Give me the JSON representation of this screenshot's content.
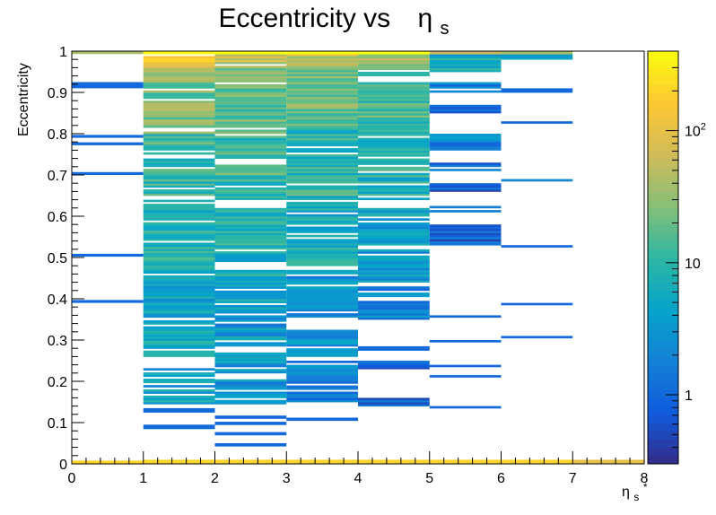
{
  "chart_data": {
    "type": "heatmap",
    "title": "Eccentricity vs",
    "title_symbol": "η",
    "title_symbol_sub": "s",
    "xlabel": "η",
    "xlabel_sub": "s",
    "xlabel_sup": "*",
    "ylabel": "Eccentricity",
    "xlim": [
      0,
      8
    ],
    "ylim": [
      0,
      1
    ],
    "x_ticks": [
      "0",
      "1",
      "2",
      "3",
      "4",
      "5",
      "6",
      "7",
      "8"
    ],
    "y_ticks": [
      "0",
      "0.1",
      "0.2",
      "0.3",
      "0.4",
      "0.5",
      "0.6",
      "0.7",
      "0.8",
      "0.9",
      "1"
    ],
    "z_scale": "log",
    "z_range": [
      0.3,
      400
    ],
    "colorbar_ticks": [
      {
        "value": 1,
        "label": "1"
      },
      {
        "value": 10,
        "label": "10"
      },
      {
        "value": 100,
        "label": "10",
        "sup": "2"
      }
    ],
    "palette": [
      "#352a87",
      "#0f5cdd",
      "#1481d6",
      "#06a4ca",
      "#2eb7a4",
      "#87bf77",
      "#d1bb59",
      "#fec832",
      "#f9fb0e"
    ],
    "x_bins": [
      {
        "x0": 0,
        "x1": 1,
        "cells": [
          {
            "y0": 0.0,
            "y1": 0.008,
            "z": 200
          },
          {
            "y0": 0.993,
            "y1": 1.0,
            "z": 40
          },
          {
            "y0": 0.91,
            "y1": 0.925,
            "z": 1
          },
          {
            "y0": 0.79,
            "y1": 0.797,
            "z": 1
          },
          {
            "y0": 0.772,
            "y1": 0.779,
            "z": 1
          },
          {
            "y0": 0.7,
            "y1": 0.707,
            "z": 1
          },
          {
            "y0": 0.502,
            "y1": 0.509,
            "z": 1
          },
          {
            "y0": 0.39,
            "y1": 0.397,
            "z": 1
          }
        ]
      },
      {
        "x0": 1,
        "x1": 2,
        "bands": [
          {
            "y0": 0.0,
            "y1": 0.01,
            "z": 200
          },
          {
            "y0": 0.085,
            "y1": 0.095,
            "z": 1
          },
          {
            "y0": 0.125,
            "y1": 0.135,
            "z": 1
          },
          {
            "y0": 0.145,
            "y1": 0.232,
            "z": 4
          },
          {
            "y0": 0.255,
            "y1": 0.348,
            "z": 6
          },
          {
            "y0": 0.355,
            "y1": 0.442,
            "z": 5
          },
          {
            "y0": 0.442,
            "y1": 0.64,
            "z": 8
          },
          {
            "y0": 0.65,
            "y1": 0.8,
            "z": 12
          },
          {
            "y0": 0.8,
            "y1": 0.95,
            "z": 25
          },
          {
            "y0": 0.95,
            "y1": 0.993,
            "z": 100
          },
          {
            "y0": 0.993,
            "y1": 1.0,
            "z": 400
          }
        ]
      },
      {
        "x0": 2,
        "x1": 3,
        "bands": [
          {
            "y0": 0.0,
            "y1": 0.01,
            "z": 200
          },
          {
            "y0": 0.043,
            "y1": 0.05,
            "z": 1
          },
          {
            "y0": 0.07,
            "y1": 0.077,
            "z": 1
          },
          {
            "y0": 0.095,
            "y1": 0.102,
            "z": 1
          },
          {
            "y0": 0.11,
            "y1": 0.117,
            "z": 1
          },
          {
            "y0": 0.145,
            "y1": 0.21,
            "z": 3
          },
          {
            "y0": 0.22,
            "y1": 0.27,
            "z": 3
          },
          {
            "y0": 0.285,
            "y1": 0.36,
            "z": 3
          },
          {
            "y0": 0.365,
            "y1": 0.435,
            "z": 5
          },
          {
            "y0": 0.435,
            "y1": 0.62,
            "z": 7
          },
          {
            "y0": 0.64,
            "y1": 0.8,
            "z": 12
          },
          {
            "y0": 0.8,
            "y1": 0.96,
            "z": 20
          },
          {
            "y0": 0.96,
            "y1": 0.993,
            "z": 60
          },
          {
            "y0": 0.993,
            "y1": 1.0,
            "z": 400
          }
        ]
      },
      {
        "x0": 3,
        "x1": 4,
        "bands": [
          {
            "y0": 0.0,
            "y1": 0.01,
            "z": 200
          },
          {
            "y0": 0.105,
            "y1": 0.112,
            "z": 1
          },
          {
            "y0": 0.15,
            "y1": 0.25,
            "z": 2
          },
          {
            "y0": 0.255,
            "y1": 0.325,
            "z": 3
          },
          {
            "y0": 0.355,
            "y1": 0.47,
            "z": 3
          },
          {
            "y0": 0.48,
            "y1": 0.65,
            "z": 6
          },
          {
            "y0": 0.65,
            "y1": 0.82,
            "z": 10
          },
          {
            "y0": 0.82,
            "y1": 0.96,
            "z": 20
          },
          {
            "y0": 0.96,
            "y1": 0.993,
            "z": 60
          },
          {
            "y0": 0.993,
            "y1": 1.0,
            "z": 400
          }
        ]
      },
      {
        "x0": 4,
        "x1": 5,
        "bands": [
          {
            "y0": 0.0,
            "y1": 0.01,
            "z": 200
          },
          {
            "y0": 0.14,
            "y1": 0.16,
            "z": 1
          },
          {
            "y0": 0.23,
            "y1": 0.25,
            "z": 1
          },
          {
            "y0": 0.275,
            "y1": 0.285,
            "z": 1
          },
          {
            "y0": 0.35,
            "y1": 0.43,
            "z": 2
          },
          {
            "y0": 0.44,
            "y1": 0.52,
            "z": 3
          },
          {
            "y0": 0.53,
            "y1": 0.62,
            "z": 4
          },
          {
            "y0": 0.64,
            "y1": 0.8,
            "z": 8
          },
          {
            "y0": 0.8,
            "y1": 0.96,
            "z": 14
          },
          {
            "y0": 0.96,
            "y1": 0.993,
            "z": 40
          },
          {
            "y0": 0.993,
            "y1": 1.0,
            "z": 400
          }
        ]
      },
      {
        "x0": 5,
        "x1": 6,
        "bands": [
          {
            "y0": 0.0,
            "y1": 0.01,
            "z": 200
          },
          {
            "y0": 0.135,
            "y1": 0.14,
            "z": 1
          },
          {
            "y0": 0.21,
            "y1": 0.215,
            "z": 1
          },
          {
            "y0": 0.235,
            "y1": 0.24,
            "z": 1
          },
          {
            "y0": 0.295,
            "y1": 0.3,
            "z": 1
          },
          {
            "y0": 0.355,
            "y1": 0.36,
            "z": 1
          },
          {
            "y0": 0.53,
            "y1": 0.58,
            "z": 1
          },
          {
            "y0": 0.61,
            "y1": 0.63,
            "z": 1
          },
          {
            "y0": 0.66,
            "y1": 0.68,
            "z": 1
          },
          {
            "y0": 0.71,
            "y1": 0.73,
            "z": 1
          },
          {
            "y0": 0.76,
            "y1": 0.8,
            "z": 2
          },
          {
            "y0": 0.85,
            "y1": 0.87,
            "z": 1
          },
          {
            "y0": 0.9,
            "y1": 0.925,
            "z": 2
          },
          {
            "y0": 0.95,
            "y1": 0.993,
            "z": 6
          },
          {
            "y0": 0.993,
            "y1": 1.0,
            "z": 60
          }
        ]
      },
      {
        "x0": 6,
        "x1": 7,
        "bands": [
          {
            "y0": 0.0,
            "y1": 0.01,
            "z": 200
          },
          {
            "y0": 0.305,
            "y1": 0.31,
            "z": 1
          },
          {
            "y0": 0.385,
            "y1": 0.39,
            "z": 1
          },
          {
            "y0": 0.525,
            "y1": 0.53,
            "z": 1
          },
          {
            "y0": 0.685,
            "y1": 0.69,
            "z": 2
          },
          {
            "y0": 0.825,
            "y1": 0.83,
            "z": 1
          },
          {
            "y0": 0.9,
            "y1": 0.91,
            "z": 1
          },
          {
            "y0": 0.98,
            "y1": 0.993,
            "z": 3
          },
          {
            "y0": 0.993,
            "y1": 1.0,
            "z": 40
          }
        ]
      },
      {
        "x0": 7,
        "x1": 8,
        "bands": [
          {
            "y0": 0.0,
            "y1": 0.01,
            "z": 100
          }
        ]
      }
    ]
  }
}
